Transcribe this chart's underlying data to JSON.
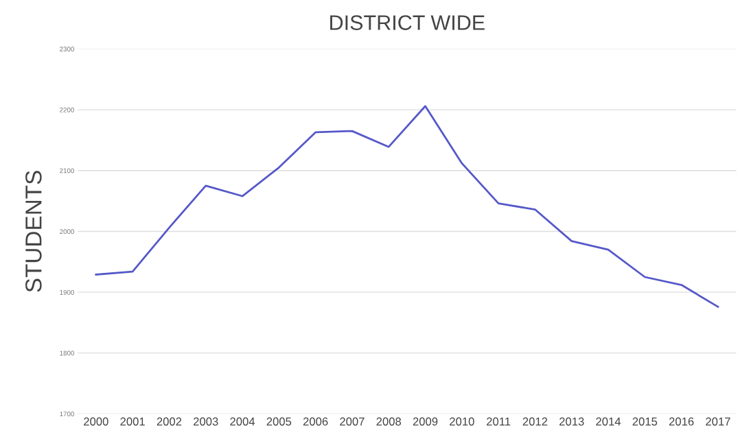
{
  "chart_data": {
    "type": "line",
    "title": "DISTRICT WIDE",
    "ylabel": "STUDENTS",
    "categories": [
      "2000",
      "2001",
      "2002",
      "2003",
      "2004",
      "2005",
      "2006",
      "2007",
      "2008",
      "2009",
      "2010",
      "2011",
      "2012",
      "2013",
      "2014",
      "2015",
      "2016",
      "2017"
    ],
    "series": [
      {
        "color": "#5558c8",
        "values": [
          1929,
          1934,
          2006,
          2075,
          2058,
          2105,
          2163,
          2165,
          2139,
          2206,
          2112,
          2046,
          2036,
          1984,
          1970,
          1925,
          1912,
          1876
        ]
      }
    ],
    "ylim": [
      1700,
      2300
    ],
    "yticks": [
      1700,
      1800,
      1900,
      2000,
      2100,
      2200,
      2300
    ],
    "grid": "y",
    "marker": "none",
    "line_style": "solid"
  }
}
